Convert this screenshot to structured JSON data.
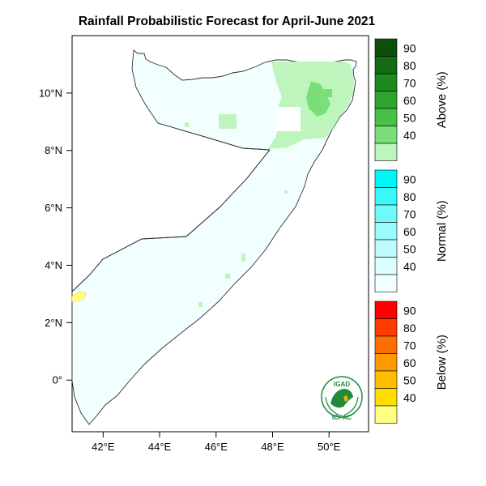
{
  "title": "Rainfall Probabilistic Forecast for April-June 2021",
  "axes": {
    "lat_labels": [
      "10°N",
      "8°N",
      "6°N",
      "4°N",
      "2°N",
      "0°"
    ],
    "lon_labels": [
      "42°E",
      "44°E",
      "46°E",
      "48°E",
      "50°E"
    ],
    "lat_values": [
      10,
      8,
      6,
      4,
      2,
      0
    ],
    "lon_values": [
      42,
      44,
      46,
      48,
      50
    ]
  },
  "colorbars": [
    {
      "title": "Above (%)",
      "labels": [
        "90",
        "80",
        "70",
        "60",
        "50",
        "40"
      ],
      "colors": [
        "#0b4f0b",
        "#146b14",
        "#1e871e",
        "#2ea52e",
        "#47c247",
        "#7ade7a",
        "#bdf5bd"
      ]
    },
    {
      "title": "Normal (%)",
      "labels": [
        "90",
        "80",
        "70",
        "60",
        "50",
        "40"
      ],
      "colors": [
        "#00f5f5",
        "#3cf7f7",
        "#6ff9f9",
        "#99fbfb",
        "#bcfcfc",
        "#dafefe",
        "#f2ffff"
      ]
    },
    {
      "title": "Below (%)",
      "labels": [
        "90",
        "80",
        "70",
        "60",
        "50",
        "40"
      ],
      "colors": [
        "#ff0000",
        "#ff3c00",
        "#ff6e00",
        "#ff9900",
        "#ffbf00",
        "#ffdf00",
        "#ffff80"
      ]
    }
  ],
  "logo": {
    "top_text": "IGAD",
    "bottom_text": "ICPAC"
  },
  "chart_data": {
    "type": "heatmap",
    "title": "Rainfall Probabilistic Forecast for April-June 2021",
    "xlim": [
      40.9,
      51.4
    ],
    "ylim": [
      -1.8,
      12.0
    ],
    "x_ticks": [
      42,
      44,
      46,
      48,
      50
    ],
    "y_ticks": [
      0,
      2,
      4,
      6,
      8,
      10
    ],
    "categories": [
      "Above (%)",
      "Normal (%)",
      "Below (%)"
    ],
    "levels": [
      40,
      50,
      60,
      70,
      80,
      90
    ],
    "regions": [
      {
        "category": "Normal (%)",
        "level": 40,
        "extent": "most of the country"
      },
      {
        "category": "Above (%)",
        "level": 40,
        "lon": [
          47.9,
          51.0
        ],
        "lat": [
          8.2,
          11.0
        ]
      },
      {
        "category": "Above (%)",
        "level": 50,
        "lon": [
          49.2,
          50.2
        ],
        "lat": [
          9.4,
          10.6
        ]
      },
      {
        "category": "Above (%)",
        "level": 40,
        "lon": [
          46.2,
          46.8
        ],
        "lat": [
          8.8,
          9.4
        ]
      },
      {
        "category": "Below (%)",
        "level": 40,
        "lon": [
          41.0,
          41.4
        ],
        "lat": [
          2.7,
          3.0
        ]
      }
    ]
  }
}
